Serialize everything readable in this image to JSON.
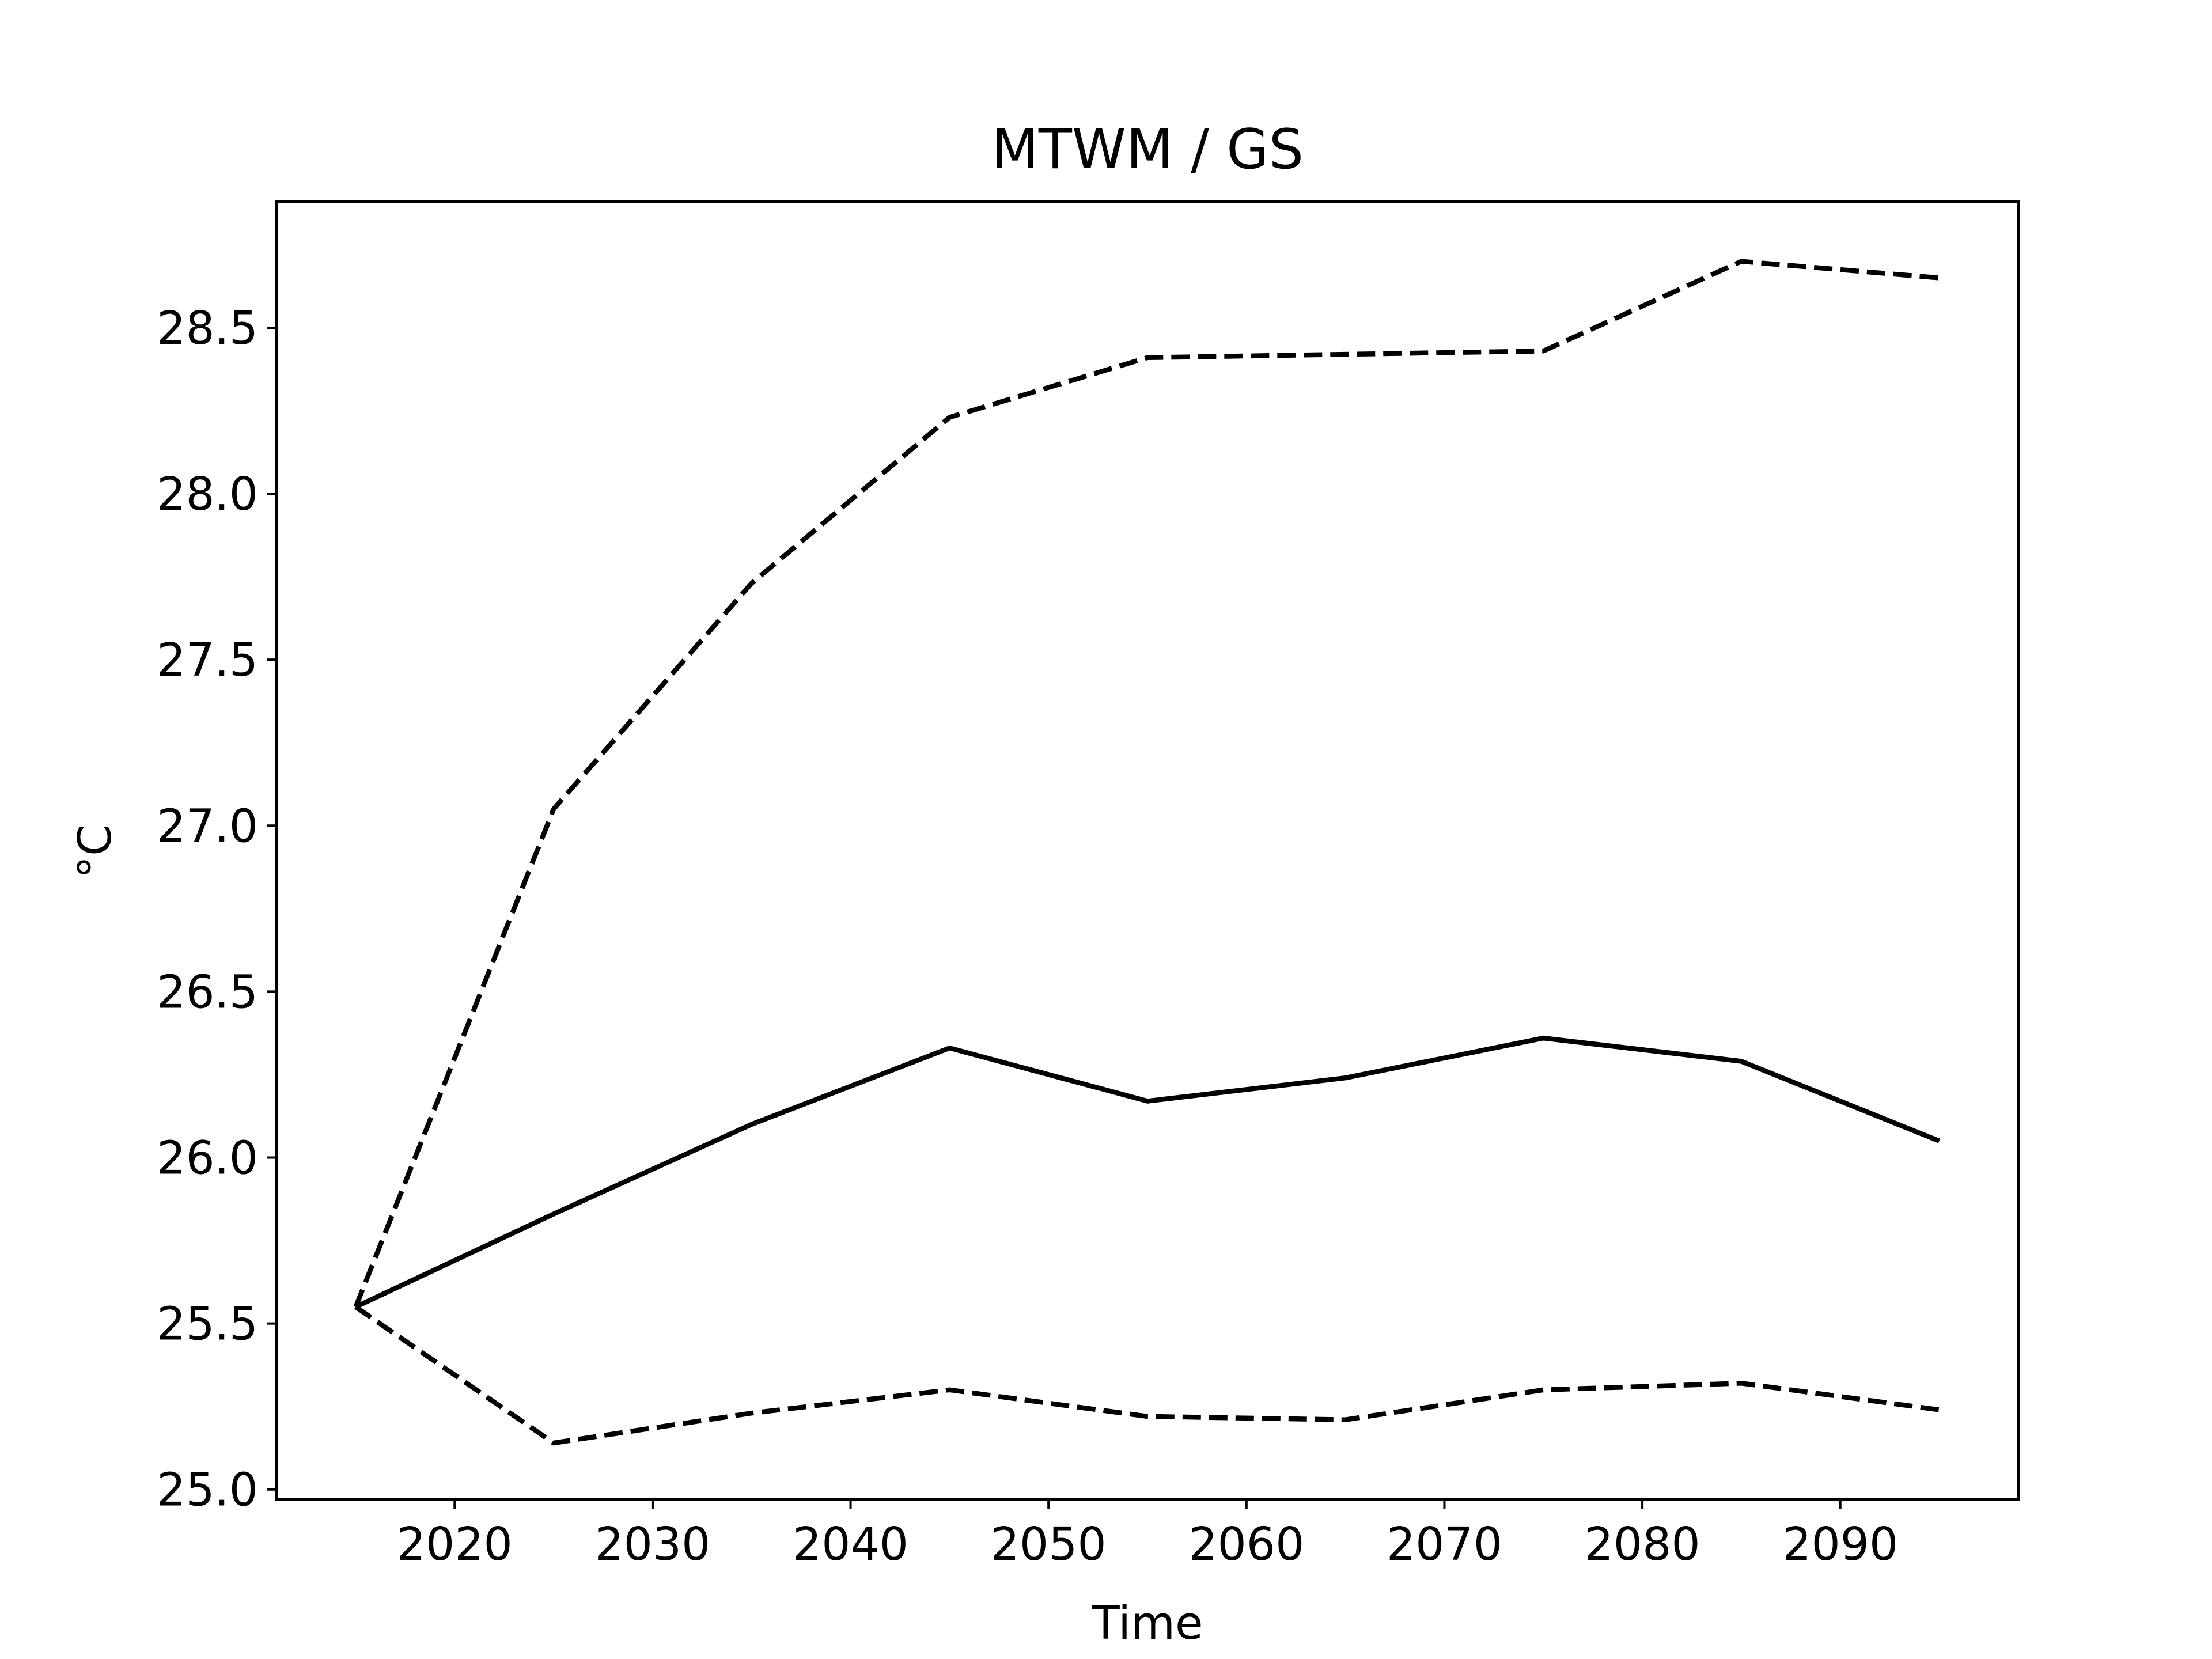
{
  "chart_data": {
    "type": "line",
    "title": "MTWM / GS",
    "xlabel": "Time",
    "ylabel": "°C",
    "xlim": [
      2011,
      2099
    ],
    "ylim": [
      24.97,
      28.88
    ],
    "xticks": [
      2020,
      2030,
      2040,
      2050,
      2060,
      2070,
      2080,
      2090
    ],
    "yticks": [
      25.0,
      25.5,
      26.0,
      26.5,
      27.0,
      27.5,
      28.0,
      28.5
    ],
    "grid": false,
    "x": [
      2015,
      2025,
      2035,
      2045,
      2055,
      2065,
      2075,
      2085,
      2095
    ],
    "series": [
      {
        "style": "solid",
        "color": "#000000",
        "values": [
          25.55,
          25.83,
          26.1,
          26.33,
          26.17,
          26.24,
          26.36,
          26.29,
          26.05
        ]
      },
      {
        "style": "dashed",
        "color": "#000000",
        "values": [
          25.55,
          27.05,
          27.73,
          28.23,
          28.41,
          28.42,
          28.43,
          28.7,
          28.65
        ]
      },
      {
        "style": "dashed",
        "color": "#000000",
        "values": [
          25.55,
          25.14,
          25.23,
          25.3,
          25.22,
          25.21,
          25.3,
          25.32,
          25.24
        ]
      }
    ]
  }
}
